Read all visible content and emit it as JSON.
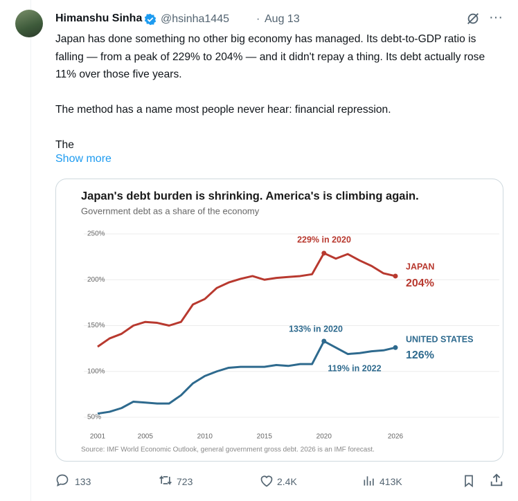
{
  "tweet": {
    "name": "Himanshu Sinha",
    "handle": "@hsinha1445",
    "date": "Aug 13",
    "paragraphs": [
      "Japan has done something no other big economy has managed. Its debt-to-GDP ratio is falling — from a peak of 229% to 204% — and it didn't repay a thing. Its debt actually rose 11% over those five years.",
      "The method has a name most people never hear: financial repression.",
      "The"
    ],
    "show_more": "Show more",
    "replies": "133",
    "reposts": "723",
    "likes": "2.4K",
    "views": "413K"
  },
  "chart_data": {
    "type": "line",
    "title": "Japan's debt burden is shrinking. America's is climbing again.",
    "subtitle": "Government debt as a share of the economy",
    "x": [
      2001,
      2002,
      2003,
      2004,
      2005,
      2006,
      2007,
      2008,
      2009,
      2010,
      2011,
      2012,
      2013,
      2014,
      2015,
      2016,
      2017,
      2018,
      2019,
      2020,
      2021,
      2022,
      2023,
      2024,
      2025,
      2026
    ],
    "series": [
      {
        "name": "JAPAN",
        "color": "#b8392f",
        "values": [
          127,
          136,
          141,
          150,
          154,
          153,
          150,
          154,
          173,
          179,
          191,
          197,
          201,
          204,
          200,
          202,
          203,
          204,
          206,
          229,
          223,
          228,
          221,
          215,
          207,
          204
        ]
      },
      {
        "name": "UNITED STATES",
        "color": "#2e6a8e",
        "values": [
          54,
          56,
          60,
          67,
          66,
          65,
          65,
          74,
          87,
          95,
          100,
          104,
          105,
          105,
          105,
          107,
          106,
          108,
          108,
          133,
          126,
          119,
          120,
          122,
          123,
          126
        ]
      }
    ],
    "annotations": [
      "229% in 2020",
      "204%",
      "133% in 2020",
      "119% in 2022",
      "126%"
    ],
    "xlim": [
      2001,
      2026
    ],
    "ylim": [
      50,
      250
    ],
    "xticks": [
      2001,
      2005,
      2010,
      2015,
      2020,
      2026
    ],
    "yticks": [
      {
        "value": 50,
        "label": "50%"
      },
      {
        "value": 100,
        "label": "100%"
      },
      {
        "value": 150,
        "label": "150%"
      },
      {
        "value": 200,
        "label": "200%"
      },
      {
        "value": 250,
        "label": "250%"
      }
    ],
    "grid": true,
    "source": "Source: IMF World Economic Outlook, general government gross debt. 2026 is an IMF forecast."
  }
}
